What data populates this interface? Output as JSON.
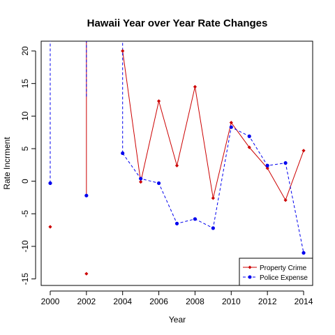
{
  "chart_data": {
    "type": "line",
    "title": "Hawaii Year over Year Rate Changes",
    "xlabel": "Year",
    "ylabel": "Rate Incrment",
    "xlim": [
      1999.5,
      2014.5
    ],
    "ylim": [
      -16,
      21.5
    ],
    "xticks": [
      2000,
      2002,
      2004,
      2006,
      2008,
      2010,
      2012,
      2014
    ],
    "xtick_labels": [
      "2000",
      "2002",
      "2004",
      "2006",
      "2008",
      "2010",
      "2012",
      "2014"
    ],
    "yticks": [
      -15,
      -10,
      -5,
      0,
      5,
      10,
      15,
      20
    ],
    "ytick_labels": [
      "-15",
      "-10",
      "-5",
      "0",
      "5",
      "10",
      "15",
      "20"
    ],
    "grid": false,
    "legend_position": "bottom-right",
    "series": [
      {
        "name": "Property Crime",
        "color": "#cc0000",
        "line_style": "solid",
        "marker": "diamond",
        "x": [
          2000,
          2002,
          2004,
          2005,
          2006,
          2007,
          2008,
          2009,
          2010,
          2011,
          2012,
          2013,
          2014
        ],
        "values": [
          -7.0,
          -14.2,
          20.0,
          -0.1,
          12.3,
          2.4,
          14.5,
          -2.6,
          9.0,
          5.2,
          2.0,
          -2.9,
          4.7
        ],
        "segments": [
          [
            0,
            0
          ],
          [
            1,
            1
          ],
          [
            2,
            12
          ]
        ],
        "extra_lines": [
          {
            "x": 2002,
            "y_from": -2.2,
            "y_to": 21.5
          }
        ]
      },
      {
        "name": "Police Expense",
        "color": "#0000ee",
        "line_style": "dashed",
        "marker": "circle",
        "x": [
          2000,
          2002,
          2004,
          2005,
          2006,
          2007,
          2008,
          2009,
          2010,
          2011,
          2012,
          2013,
          2014
        ],
        "values": [
          -0.3,
          -2.2,
          4.3,
          0.4,
          -0.3,
          -6.5,
          -5.8,
          -7.2,
          8.3,
          6.9,
          2.4,
          2.8,
          -11.0
        ],
        "segments": [
          [
            2,
            12
          ]
        ],
        "extra_lines": [
          {
            "x": 2000,
            "y_from": -0.3,
            "y_to": 21.5
          },
          {
            "x": 2002,
            "y_from": 13.0,
            "y_to": 21.5
          },
          {
            "x": 2004,
            "y_from": 4.3,
            "y_to": 21.5
          }
        ]
      }
    ]
  }
}
